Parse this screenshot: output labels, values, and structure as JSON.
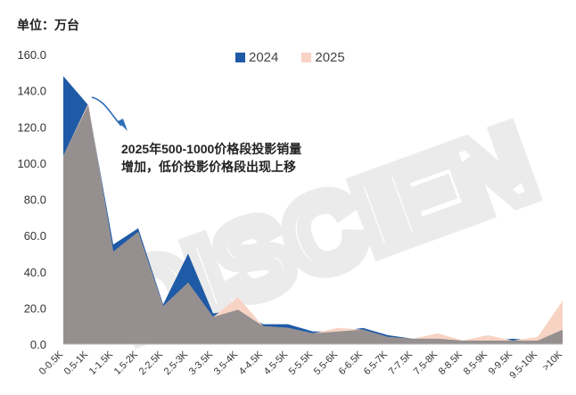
{
  "unit_label": "单位：万台",
  "annotation": "2025年500-1000价格段投影销量增加，低价投影价格段出现上移",
  "colors": {
    "s2024": "#1f5aa6",
    "s2025": "#f7d3c3",
    "overlap": "#8c8a8b",
    "axis": "#bfbfbf",
    "arrow": "#2f6db5",
    "watermark": "#e9e9e9"
  },
  "watermark": "DISCIEN",
  "chart_data": {
    "type": "area",
    "categories": [
      "0-0.5K",
      "0.5-1K",
      "1-1.5K",
      "1.5-2K",
      "2-2.5K",
      "2.5-3K",
      "3-3.5K",
      "3.5-4K",
      "4-4.5K",
      "4.5-5K",
      "5-5.5K",
      "5.5-6K",
      "6-6.5K",
      "6.5-7K",
      "7-7.5K",
      "7.5-8K",
      "8-8.5K",
      "8.5-9K",
      "9-9.5K",
      "9.5-10K",
      ">10K"
    ],
    "series": [
      {
        "name": "2024",
        "values": [
          148,
          132,
          55,
          64,
          22,
          50,
          17,
          19,
          11,
          11,
          7,
          7,
          9,
          5,
          3,
          3,
          2,
          2,
          3,
          2,
          8
        ]
      },
      {
        "name": "2025",
        "values": [
          104,
          133,
          51,
          62,
          21,
          34,
          15,
          26,
          10,
          9,
          6,
          9,
          8,
          4,
          3,
          6,
          2,
          5,
          2,
          4,
          24
        ]
      }
    ],
    "ylim": [
      0,
      160
    ],
    "yticks": [
      "0.0",
      "20.0",
      "40.0",
      "60.0",
      "80.0",
      "100.0",
      "120.0",
      "140.0",
      "160.0"
    ],
    "legend": "top",
    "grid": false
  }
}
